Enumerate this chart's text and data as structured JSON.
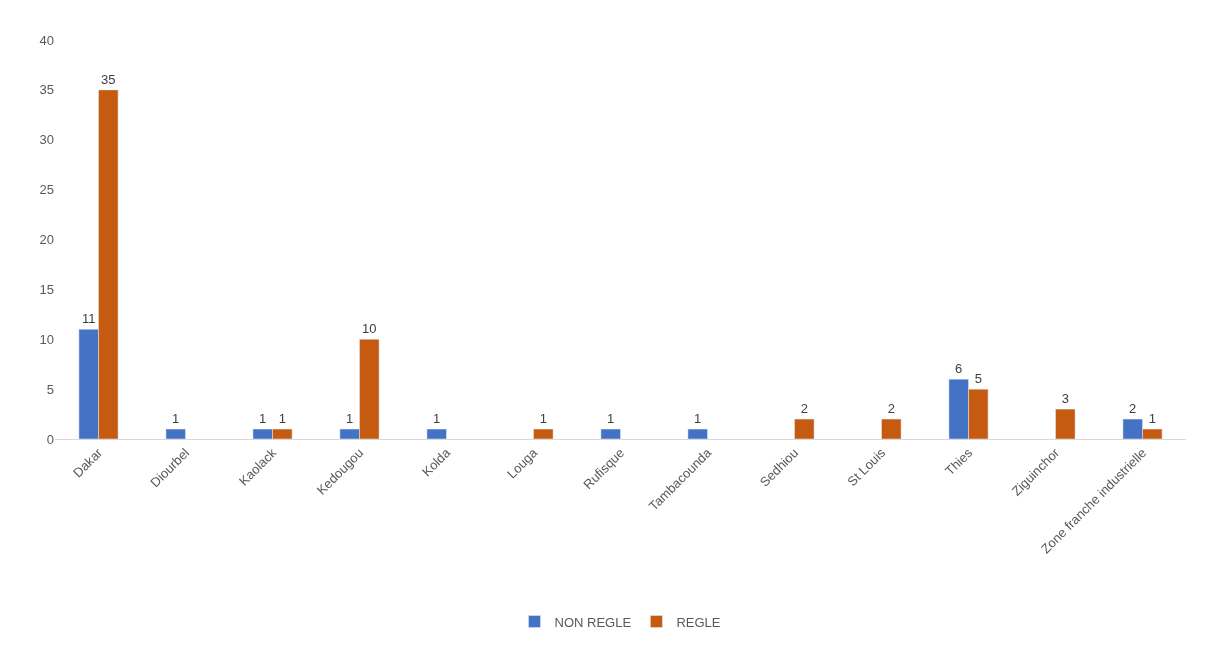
{
  "chart_data": {
    "type": "bar",
    "categories": [
      "Dakar",
      "Diourbel",
      "Kaolack",
      "Kedougou",
      "Kolda",
      "Louga",
      "Rufisque",
      "Tambacounda",
      "Sedhiou",
      "St Louis",
      "Thies",
      "Ziguinchor",
      "Zone franche industrielle"
    ],
    "series": [
      {
        "name": "NON REGLE",
        "color": "#4472c4",
        "values": [
          11,
          1,
          1,
          1,
          1,
          null,
          1,
          1,
          null,
          null,
          6,
          null,
          2
        ]
      },
      {
        "name": "REGLE",
        "color": "#c55a11",
        "values": [
          35,
          null,
          1,
          10,
          null,
          1,
          null,
          null,
          2,
          2,
          5,
          3,
          1
        ]
      }
    ],
    "ylim": [
      0,
      40
    ],
    "yticks": [
      0,
      5,
      10,
      15,
      20,
      25,
      30,
      35,
      40
    ],
    "data_labels": true,
    "legend": "bottom",
    "grid": false
  }
}
